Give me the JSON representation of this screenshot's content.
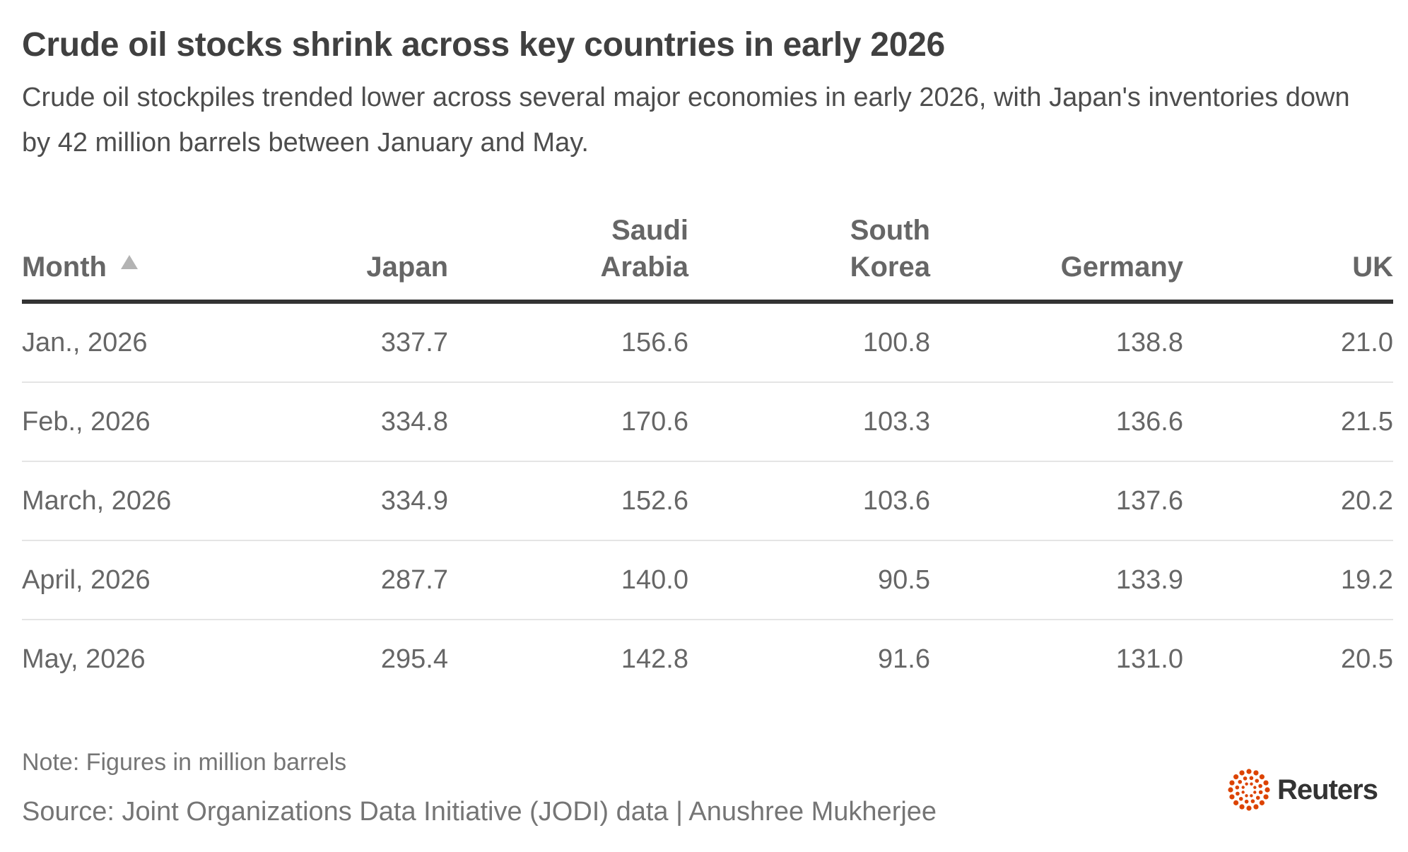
{
  "header": {
    "title": "Crude oil stocks shrink across key countries in early 2026",
    "subtitle": "Crude oil stockpiles trended lower across several major economies in early 2026, with Japan's inventories down by 42 million barrels between January and May."
  },
  "chart_data": {
    "type": "table",
    "title": "Crude oil stocks shrink across key countries in early 2026",
    "subtitle": "Crude oil stockpiles trended lower across several major economies in early 2026, with Japan's inventories down by 42 million barrels between January and May.",
    "columns": [
      {
        "label": "Month",
        "align": "left",
        "sorted": "ascending"
      },
      {
        "label": "Japan",
        "align": "right"
      },
      {
        "label": "Saudi Arabia",
        "align": "right"
      },
      {
        "label": "South Korea",
        "align": "right"
      },
      {
        "label": "Germany",
        "align": "right"
      },
      {
        "label": "UK",
        "align": "right"
      }
    ],
    "rows": [
      [
        "Jan., 2026",
        "337.7",
        "156.6",
        "100.8",
        "138.8",
        "21.0"
      ],
      [
        "Feb., 2026",
        "334.8",
        "170.6",
        "103.3",
        "136.6",
        "21.5"
      ],
      [
        "March, 2026",
        "334.9",
        "152.6",
        "103.6",
        "137.6",
        "20.2"
      ],
      [
        "April, 2026",
        "287.7",
        "140.0",
        "90.5",
        "133.9",
        "19.2"
      ],
      [
        "May, 2026",
        "295.4",
        "142.8",
        "91.6",
        "131.0",
        "20.5"
      ]
    ],
    "note": "Note: Figures in million barrels",
    "source": "Source: Joint Organizations Data Initiative (JODI) data | Anushree Mukherjee"
  },
  "footer": {
    "note": "Note: Figures in million barrels",
    "source": "Source: Joint Organizations Data Initiative (JODI) data | Anushree Mukherjee",
    "logo_text": "Reuters",
    "logo_icon": "reuters-dot-ring-icon"
  },
  "colors": {
    "text_dark": "#404040",
    "text_muted": "#666666",
    "rule_header": "#333333",
    "rule_row": "#e5e5e5",
    "sort_icon": "#b3b3b3",
    "logo_accent": "#dc4300"
  }
}
